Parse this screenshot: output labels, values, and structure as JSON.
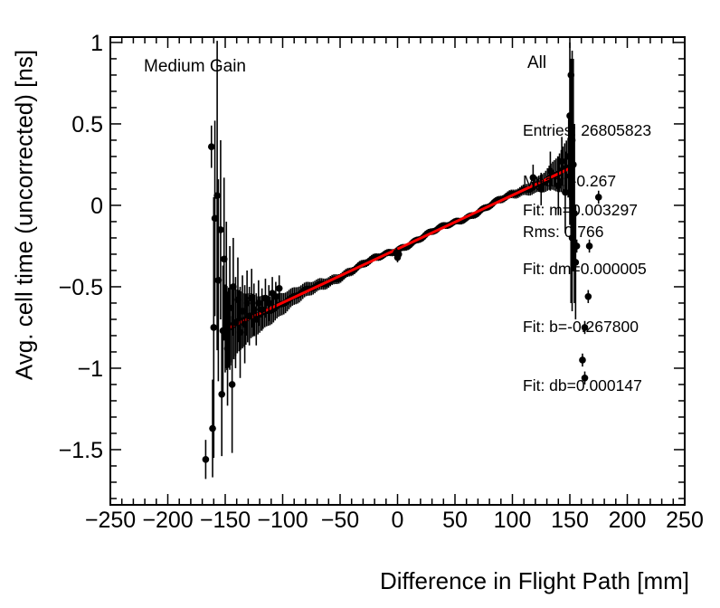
{
  "chart_data": {
    "type": "scatter",
    "title": "",
    "xlabel": "Difference in Flight Path [mm]",
    "ylabel": "Avg. cell time (uncorrected) [ns]",
    "xlim": [
      -250,
      250
    ],
    "ylim": [
      -1.839,
      1.033
    ],
    "grid": false,
    "legend_position": "none",
    "colors": {
      "marker": "#000000",
      "fit_line": "#ff0000",
      "background": "#ffffff",
      "frame": "#000000"
    },
    "annotations": {
      "gain_label": "Medium Gain",
      "region_label": "All",
      "stats_entries": "Entries: 26805823",
      "stats_mean": "Mean: -0.267",
      "stats_rms": "Rms: 0.766",
      "fit_m": "Fit: m=0.003297",
      "fit_dm": "Fit: dm=0.000005",
      "fit_b": "Fit: b=-0.267800",
      "fit_db": "Fit: db=0.000147"
    },
    "x_ticks": [
      {
        "v": -250,
        "label": "−250"
      },
      {
        "v": -200,
        "label": "−200"
      },
      {
        "v": -150,
        "label": "−150"
      },
      {
        "v": -100,
        "label": "−100"
      },
      {
        "v": -50,
        "label": "−50"
      },
      {
        "v": 0,
        "label": "0"
      },
      {
        "v": 50,
        "label": "50"
      },
      {
        "v": 100,
        "label": "100"
      },
      {
        "v": 150,
        "label": "150"
      },
      {
        "v": 200,
        "label": "200"
      },
      {
        "v": 250,
        "label": "250"
      }
    ],
    "y_ticks": [
      {
        "v": 1,
        "label": "1"
      },
      {
        "v": 0.5,
        "label": "0.5"
      },
      {
        "v": 0,
        "label": "0"
      },
      {
        "v": -0.5,
        "label": "−0.5"
      },
      {
        "v": -1,
        "label": "−1"
      },
      {
        "v": -1.5,
        "label": "−1.5"
      }
    ],
    "x_minor_step": 10,
    "y_minor_step": 0.1,
    "fit": {
      "slope": 0.003297,
      "intercept": -0.2678,
      "x_start": -146,
      "x_end": 151
    },
    "profile_band": {
      "x_start": -150,
      "x_end": 150,
      "step": 1.5,
      "wiggle_amp1": 0.01,
      "wiggle_freq1": 0.11,
      "wiggle_amp2": 0.006,
      "wiggle_freq2": 0.53,
      "err_base": 0.02,
      "err_left_amp": 0.25,
      "err_left_decay": 30,
      "err_right_amp": 0.18,
      "err_right_decay": 15
    },
    "outlier_points": [
      [
        -167,
        -1.56,
        0.12
      ],
      [
        -162,
        0.36,
        0.13
      ],
      [
        -161,
        -1.37,
        0.3
      ],
      [
        -160,
        -0.75,
        0.8
      ],
      [
        -159,
        -0.08,
        0.6
      ],
      [
        -157,
        0.06,
        0.95
      ],
      [
        -156,
        -0.46,
        0.62
      ],
      [
        -154,
        -0.15,
        0.55
      ],
      [
        -153,
        -1.16,
        0.38
      ],
      [
        -152,
        -0.77,
        0.4
      ],
      [
        -151,
        -0.33,
        0.5
      ],
      [
        -149,
        -0.55,
        0.45
      ],
      [
        -148,
        -0.88,
        0.35
      ],
      [
        -146,
        -0.63,
        0.38
      ],
      [
        -144,
        -1.1,
        0.42
      ],
      [
        -143,
        -0.5,
        0.3
      ],
      [
        -141,
        -0.72,
        0.28
      ],
      [
        -139,
        -0.58,
        0.26
      ],
      [
        -137,
        -0.78,
        0.28
      ],
      [
        -135,
        -0.65,
        0.22
      ],
      [
        -133,
        -0.73,
        0.24
      ],
      [
        -131,
        -0.6,
        0.2
      ],
      [
        -129,
        -0.68,
        0.18
      ],
      [
        -127,
        -0.57,
        0.18
      ],
      [
        -125,
        -0.64,
        0.16
      ],
      [
        -123,
        -0.7,
        0.16
      ],
      [
        -121,
        -0.6,
        0.14
      ],
      [
        -118,
        -0.64,
        0.13
      ],
      [
        -115,
        -0.57,
        0.12
      ],
      [
        -112,
        -0.6,
        0.11
      ],
      [
        -109,
        -0.54,
        0.1
      ],
      [
        -106,
        -0.56,
        0.09
      ],
      [
        -103,
        -0.51,
        0.08
      ],
      [
        -1,
        -0.29,
        0.03
      ],
      [
        0,
        -0.32,
        0.03
      ],
      [
        1,
        -0.3,
        0.02
      ],
      [
        118,
        0.17,
        0.08
      ],
      [
        125,
        0.1,
        0.1
      ],
      [
        133,
        0.21,
        0.12
      ],
      [
        140,
        0.12,
        0.18
      ],
      [
        143,
        0.27,
        0.15
      ],
      [
        146,
        0.08,
        0.25
      ],
      [
        149,
        0.3,
        0.25
      ],
      [
        150,
        0.55,
        0.45
      ],
      [
        150,
        0.18,
        0.3
      ],
      [
        151,
        0.8,
        0.1
      ],
      [
        151,
        0.1,
        0.7
      ],
      [
        152,
        0.4,
        0.55
      ],
      [
        152,
        -0.2,
        0.45
      ],
      [
        153,
        0.25,
        0.65
      ],
      [
        154,
        -0.05,
        0.55
      ],
      [
        155,
        -0.35,
        0.35
      ],
      [
        156,
        -0.25,
        0.04
      ],
      [
        161,
        -0.95,
        0.04
      ],
      [
        163,
        -0.75,
        0.04
      ],
      [
        163,
        -1.06,
        0.04
      ],
      [
        166,
        -0.56,
        0.04
      ],
      [
        167,
        -0.25,
        0.04
      ],
      [
        175,
        0.05,
        0.04
      ]
    ]
  }
}
